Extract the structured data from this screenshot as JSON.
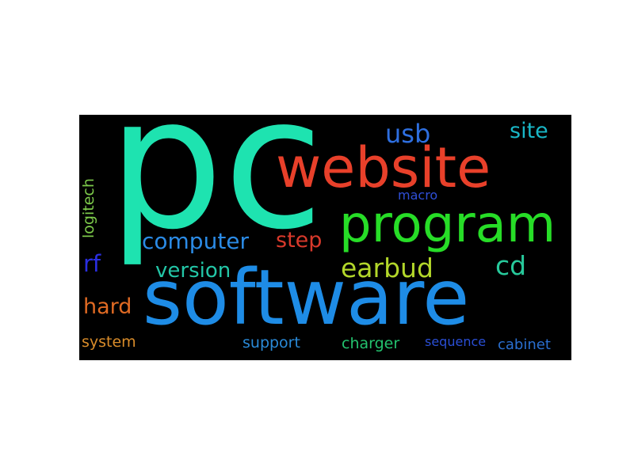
{
  "words": [
    {
      "id": "pc",
      "text": "pc",
      "color": "#1ee3b0"
    },
    {
      "id": "website",
      "text": "website",
      "color": "#e8402a"
    },
    {
      "id": "program",
      "text": "program",
      "color": "#27dd27"
    },
    {
      "id": "software",
      "text": "software",
      "color": "#1e8ce6"
    },
    {
      "id": "usb",
      "text": "usb",
      "color": "#2e6fe0"
    },
    {
      "id": "site",
      "text": "site",
      "color": "#19b7c7"
    },
    {
      "id": "macro",
      "text": "macro",
      "color": "#2f4fd8"
    },
    {
      "id": "computer",
      "text": "computer",
      "color": "#2b8be6"
    },
    {
      "id": "step",
      "text": "step",
      "color": "#d8392b"
    },
    {
      "id": "earbud",
      "text": "earbud",
      "color": "#b3d72a"
    },
    {
      "id": "cd",
      "text": "cd",
      "color": "#27c99b"
    },
    {
      "id": "version",
      "text": "version",
      "color": "#23c6a7"
    },
    {
      "id": "logitech",
      "text": "logitech",
      "color": "#7cc94a"
    },
    {
      "id": "rf",
      "text": "rf",
      "color": "#2a2ee0"
    },
    {
      "id": "hard",
      "text": "hard",
      "color": "#e06a23"
    },
    {
      "id": "system",
      "text": "system",
      "color": "#d98c2a"
    },
    {
      "id": "support",
      "text": "support",
      "color": "#2a8ad8"
    },
    {
      "id": "charger",
      "text": "charger",
      "color": "#23c26e"
    },
    {
      "id": "sequence",
      "text": "sequence",
      "color": "#2a4fd6"
    },
    {
      "id": "cabinet",
      "text": "cabinet",
      "color": "#2a6fd0"
    }
  ]
}
